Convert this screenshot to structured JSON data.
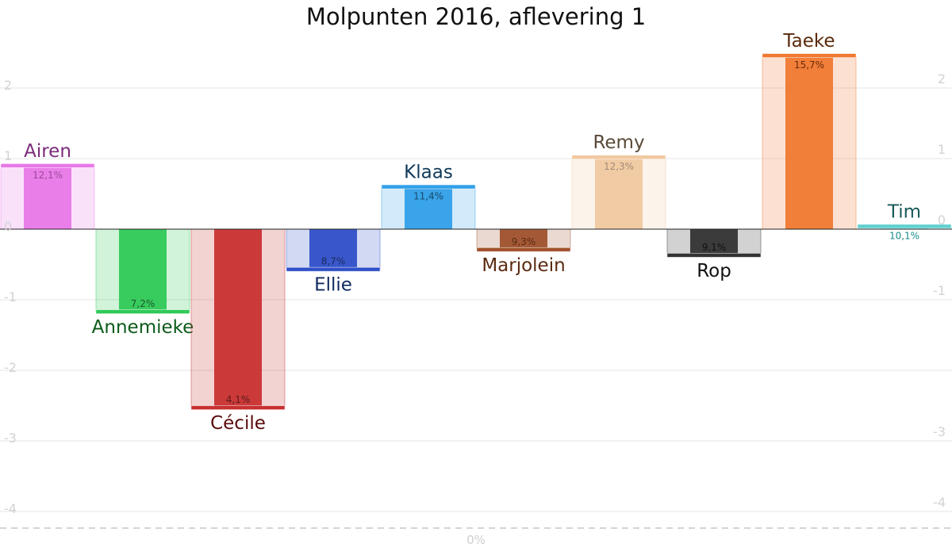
{
  "chart_data": {
    "type": "bar",
    "title": "Molpunten 2016, aflevering 1",
    "xlabel": "",
    "ylabel": "",
    "ylim": [
      -4.2,
      2.5
    ],
    "left_ticks": [
      "2",
      "1",
      "0",
      "-1",
      "-2",
      "-3",
      "-4"
    ],
    "right_ticks": [
      "2",
      "1",
      "0",
      "-1",
      "-3",
      "-4"
    ],
    "baseline_label": "0%",
    "grid": true,
    "categories": [
      "Airen",
      "Annemieke",
      "Cécile",
      "Ellie",
      "Klaas",
      "Marjolein",
      "Remy",
      "Rop",
      "Taeke",
      "Tim"
    ],
    "values": [
      0.9,
      -1.17,
      -2.53,
      -0.57,
      0.6,
      -0.29,
      1.02,
      -0.37,
      2.46,
      0.04
    ],
    "percentages": [
      "12,1%",
      "7,2%",
      "4,1%",
      "8,7%",
      "11,4%",
      "9,3%",
      "12,3%",
      "9,1%",
      "15,7%",
      "10,1%"
    ],
    "colors": [
      "#e878e8",
      "#2fc957",
      "#c83030",
      "#3050c8",
      "#30a0e8",
      "#a0522d",
      "#f0c8a0",
      "#333333",
      "#f07830",
      "#60d0d0"
    ],
    "label_colors": [
      "#7a2a7a",
      "#0c5a1a",
      "#5a0a0a",
      "#102a60",
      "#103a5a",
      "#5a2a10",
      "#5a4a38",
      "#111111",
      "#5a2a0a",
      "#1a5a5a"
    ],
    "pct_label_colors": [
      "#9a4a9a",
      "#1a5a2a",
      "#5a1a1a",
      "#1a2a60",
      "#1a4a6a",
      "#5a2a10",
      "#a08a78",
      "#111111",
      "#6a2a0a",
      "#1a8a8a"
    ]
  }
}
